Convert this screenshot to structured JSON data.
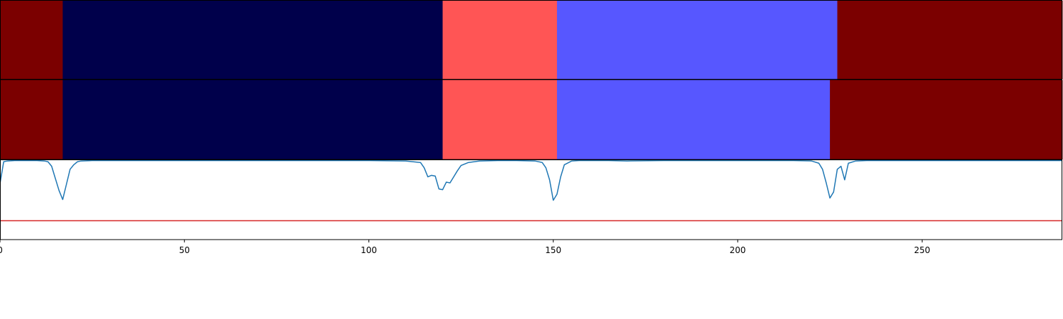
{
  "chart_data": [
    {
      "type": "heatmap",
      "title": "",
      "xlabel": "",
      "ylabel": "",
      "xlim": [
        0,
        288
      ],
      "grid": false,
      "legend": "none",
      "segments": [
        {
          "start": 0,
          "end": 17,
          "color": "#7b0000"
        },
        {
          "start": 17,
          "end": 120,
          "color": "#00004b"
        },
        {
          "start": 120,
          "end": 151,
          "color": "#ff5555"
        },
        {
          "start": 151,
          "end": 227,
          "color": "#5757ff"
        },
        {
          "start": 227,
          "end": 288,
          "color": "#7b0000"
        }
      ]
    },
    {
      "type": "heatmap",
      "title": "",
      "xlabel": "",
      "ylabel": "",
      "xlim": [
        0,
        288
      ],
      "grid": false,
      "legend": "none",
      "segments": [
        {
          "start": 0,
          "end": 17,
          "color": "#7b0000"
        },
        {
          "start": 17,
          "end": 120,
          "color": "#00004b"
        },
        {
          "start": 120,
          "end": 151,
          "color": "#ff5555"
        },
        {
          "start": 151,
          "end": 225,
          "color": "#5757ff"
        },
        {
          "start": 225,
          "end": 288,
          "color": "#7b0000"
        }
      ]
    },
    {
      "type": "line",
      "title": "",
      "xlabel": "",
      "ylabel": "",
      "xlim": [
        0,
        288
      ],
      "ylim": [
        -0.05,
        1.0
      ],
      "grid": false,
      "legend": "none",
      "x_ticks": [
        0,
        50,
        100,
        150,
        200,
        250
      ],
      "x_tick_labels": [
        "0",
        "50",
        "100",
        "150",
        "200",
        "250"
      ],
      "series": [
        {
          "color": "#1f77b4",
          "x": [
            0,
            1,
            2,
            4,
            6,
            8,
            10,
            12,
            13,
            14,
            15,
            16,
            17,
            18,
            19,
            20,
            21,
            22,
            25,
            30,
            40,
            60,
            80,
            100,
            110,
            114,
            115,
            116,
            117,
            118,
            119,
            120,
            121,
            122,
            123,
            124,
            125,
            127,
            130,
            135,
            140,
            145,
            147,
            148,
            149,
            150,
            151,
            152,
            153,
            155,
            157,
            160,
            165,
            170,
            180,
            200,
            215,
            220,
            222,
            223,
            224,
            225,
            226,
            227,
            228,
            229,
            230,
            232,
            235,
            240,
            260,
            288
          ],
          "y": [
            0.69,
            0.98,
            0.99,
            0.995,
            0.995,
            0.995,
            0.995,
            0.99,
            0.98,
            0.92,
            0.76,
            0.6,
            0.48,
            0.68,
            0.88,
            0.94,
            0.98,
            0.99,
            0.995,
            0.995,
            0.995,
            0.995,
            0.995,
            0.995,
            0.99,
            0.97,
            0.9,
            0.78,
            0.8,
            0.79,
            0.62,
            0.61,
            0.71,
            0.7,
            0.78,
            0.86,
            0.93,
            0.97,
            0.99,
            0.995,
            0.995,
            0.99,
            0.97,
            0.9,
            0.74,
            0.47,
            0.55,
            0.78,
            0.94,
            0.99,
            0.995,
            0.995,
            0.995,
            0.99,
            0.995,
            0.995,
            0.995,
            0.99,
            0.96,
            0.88,
            0.7,
            0.5,
            0.58,
            0.88,
            0.92,
            0.74,
            0.96,
            0.99,
            0.995,
            0.995,
            0.995,
            0.995
          ]
        },
        {
          "color": "#d62728",
          "x": [
            0,
            288
          ],
          "y": [
            0.2,
            0.2
          ]
        }
      ]
    }
  ]
}
